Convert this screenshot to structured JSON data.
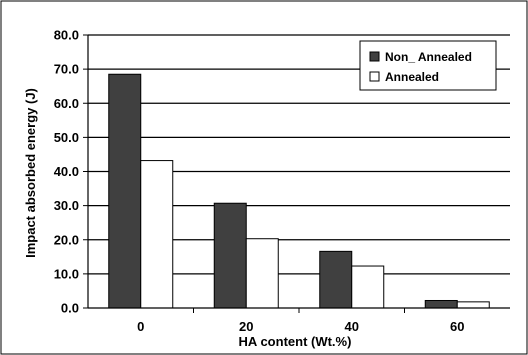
{
  "chart_data": {
    "type": "bar",
    "categories": [
      "0",
      "20",
      "40",
      "60"
    ],
    "series": [
      {
        "name": "Non_ Annealed",
        "values": [
          68.5,
          30.7,
          16.6,
          2.2
        ],
        "color": "#404040"
      },
      {
        "name": "Annealed",
        "values": [
          43.2,
          20.3,
          12.3,
          1.8
        ],
        "color": "#ffffff"
      }
    ],
    "xlabel": "HA content (Wt.%)",
    "ylabel": "Impact absorbed energy (J)",
    "ylim": [
      0,
      80
    ],
    "yticks": [
      "0.0",
      "10.0",
      "20.0",
      "30.0",
      "40.0",
      "50.0",
      "60.0",
      "70.0",
      "80.0"
    ],
    "grid": true,
    "legend_position": "top-right"
  }
}
